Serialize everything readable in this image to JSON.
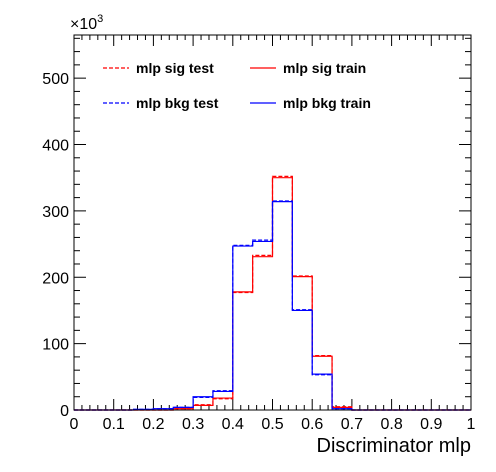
{
  "chart_data": {
    "type": "line",
    "xlabel": "Discriminator mlp",
    "ylabel": "",
    "y_multiplier_label": "×10",
    "y_multiplier_exponent": "3",
    "xlim": [
      0,
      1
    ],
    "ylim": [
      0,
      565
    ],
    "x_ticks": [
      "0",
      "0.1",
      "0.2",
      "0.3",
      "0.4",
      "0.5",
      "0.6",
      "0.7",
      "0.8",
      "0.9",
      "1"
    ],
    "y_ticks": [
      "0",
      "100",
      "200",
      "300",
      "400",
      "500"
    ],
    "bin_edges": [
      0.0,
      0.05,
      0.1,
      0.15,
      0.2,
      0.25,
      0.3,
      0.35,
      0.4,
      0.45,
      0.5,
      0.55,
      0.6,
      0.65,
      0.7,
      0.75,
      0.8,
      0.85,
      0.9,
      0.95,
      1.0
    ],
    "legend_position": "top-left",
    "series": [
      {
        "name": "mlp sig test",
        "color": "#ff0000",
        "style": "dashed",
        "values": [
          0,
          0,
          0,
          0,
          0,
          2,
          8,
          17,
          177,
          233,
          352,
          202,
          82,
          5,
          0,
          0,
          0,
          0,
          0,
          0
        ]
      },
      {
        "name": "mlp sig train",
        "color": "#ff0000",
        "style": "solid",
        "values": [
          0,
          0,
          0,
          0,
          0,
          2,
          7,
          18,
          178,
          231,
          350,
          201,
          81,
          4,
          0,
          0,
          0,
          0,
          0,
          0
        ]
      },
      {
        "name": "mlp bkg test",
        "color": "#0000ff",
        "style": "dashed",
        "values": [
          0,
          0,
          0,
          1,
          2,
          4,
          19,
          29,
          248,
          256,
          315,
          151,
          53,
          2,
          0,
          0,
          0,
          0,
          0,
          0
        ]
      },
      {
        "name": "mlp bkg train",
        "color": "#0000ff",
        "style": "solid",
        "values": [
          0,
          0,
          0,
          1,
          2,
          4,
          20,
          28,
          247,
          254,
          314,
          150,
          54,
          2,
          0,
          0,
          0,
          0,
          0,
          0
        ]
      }
    ]
  }
}
